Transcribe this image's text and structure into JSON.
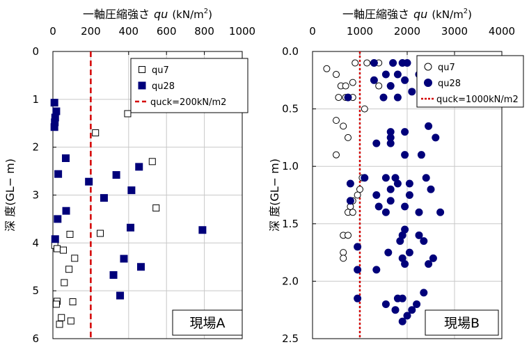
{
  "chart_data": [
    {
      "type": "scatter",
      "site": "現場A",
      "x_title": "一軸圧縮強さ",
      "x_symbol": "qu",
      "x_unit": "(kN/m",
      "x_unit_sup": "2",
      "x_unit_close": ")",
      "y_title": "深 度(GL− m)",
      "xlim": [
        0,
        1000
      ],
      "ylim": [
        0,
        6
      ],
      "x_ticks": [
        "0",
        "200",
        "400",
        "600",
        "800",
        "1000"
      ],
      "y_ticks": [
        "0",
        "1",
        "2",
        "3",
        "4",
        "5",
        "6"
      ],
      "reference_line": {
        "x": 200,
        "label": "quck=200kN/m2",
        "color": "#d40000"
      },
      "legend_position": "top-right",
      "series": [
        {
          "name": "qu7",
          "marker": "open-square",
          "points": [
            {
              "x": 395,
              "y": 1.3
            },
            {
              "x": 225,
              "y": 1.7
            },
            {
              "x": 525,
              "y": 2.3
            },
            {
              "x": 545,
              "y": 3.27
            },
            {
              "x": 90,
              "y": 3.82
            },
            {
              "x": 250,
              "y": 3.8
            },
            {
              "x": 10,
              "y": 4.05
            },
            {
              "x": 22,
              "y": 4.12
            },
            {
              "x": 55,
              "y": 4.15
            },
            {
              "x": 115,
              "y": 4.32
            },
            {
              "x": 85,
              "y": 4.55
            },
            {
              "x": 60,
              "y": 4.83
            },
            {
              "x": 22,
              "y": 5.22
            },
            {
              "x": 105,
              "y": 5.23
            },
            {
              "x": 18,
              "y": 5.28
            },
            {
              "x": 45,
              "y": 5.56
            },
            {
              "x": 95,
              "y": 5.63
            },
            {
              "x": 35,
              "y": 5.7
            }
          ]
        },
        {
          "name": "qu28",
          "marker": "filled-square",
          "points": [
            {
              "x": 8,
              "y": 1.07
            },
            {
              "x": 18,
              "y": 1.25
            },
            {
              "x": 12,
              "y": 1.38
            },
            {
              "x": 10,
              "y": 1.48
            },
            {
              "x": 8,
              "y": 1.58
            },
            {
              "x": 68,
              "y": 2.23
            },
            {
              "x": 28,
              "y": 2.56
            },
            {
              "x": 455,
              "y": 2.41
            },
            {
              "x": 335,
              "y": 2.58
            },
            {
              "x": 190,
              "y": 2.72
            },
            {
              "x": 415,
              "y": 2.9
            },
            {
              "x": 270,
              "y": 3.06
            },
            {
              "x": 70,
              "y": 3.33
            },
            {
              "x": 25,
              "y": 3.5
            },
            {
              "x": 410,
              "y": 3.68
            },
            {
              "x": 790,
              "y": 3.73
            },
            {
              "x": 12,
              "y": 3.92
            },
            {
              "x": 375,
              "y": 4.33
            },
            {
              "x": 465,
              "y": 4.5
            },
            {
              "x": 320,
              "y": 4.67
            },
            {
              "x": 355,
              "y": 5.1
            }
          ]
        }
      ]
    },
    {
      "type": "scatter",
      "site": "現場B",
      "x_title": "一軸圧縮強さ",
      "x_symbol": "qu",
      "x_unit": "(kN/m",
      "x_unit_sup": "2",
      "x_unit_close": ")",
      "y_title": "深 度(GL− m)",
      "xlim": [
        0,
        4000
      ],
      "ylim": [
        0,
        2.5
      ],
      "x_ticks": [
        "0",
        "1000",
        "2000",
        "3000",
        "4000"
      ],
      "y_ticks": [
        "0.0",
        "0.5",
        "1.0",
        "1.5",
        "2.0",
        "2.5"
      ],
      "reference_line": {
        "x": 1000,
        "label": "quck=1000kN/m2",
        "color": "#d40000"
      },
      "legend_position": "top-right",
      "series": [
        {
          "name": "qu7",
          "marker": "open-circle",
          "points": [
            {
              "x": 300,
              "y": 0.15
            },
            {
              "x": 900,
              "y": 0.1
            },
            {
              "x": 1150,
              "y": 0.1
            },
            {
              "x": 1400,
              "y": 0.1
            },
            {
              "x": 500,
              "y": 0.2
            },
            {
              "x": 850,
              "y": 0.27
            },
            {
              "x": 600,
              "y": 0.3
            },
            {
              "x": 700,
              "y": 0.3
            },
            {
              "x": 1400,
              "y": 0.3
            },
            {
              "x": 550,
              "y": 0.4
            },
            {
              "x": 700,
              "y": 0.4
            },
            {
              "x": 850,
              "y": 0.4
            },
            {
              "x": 1100,
              "y": 0.5
            },
            {
              "x": 500,
              "y": 0.6
            },
            {
              "x": 650,
              "y": 0.65
            },
            {
              "x": 750,
              "y": 0.75
            },
            {
              "x": 500,
              "y": 0.9
            },
            {
              "x": 1050,
              "y": 1.1
            },
            {
              "x": 1000,
              "y": 1.2
            },
            {
              "x": 950,
              "y": 1.25
            },
            {
              "x": 850,
              "y": 1.3
            },
            {
              "x": 800,
              "y": 1.35
            },
            {
              "x": 750,
              "y": 1.4
            },
            {
              "x": 850,
              "y": 1.4
            },
            {
              "x": 650,
              "y": 1.6
            },
            {
              "x": 750,
              "y": 1.6
            },
            {
              "x": 650,
              "y": 1.75
            },
            {
              "x": 650,
              "y": 1.8
            }
          ]
        },
        {
          "name": "qu28",
          "marker": "filled-circle",
          "points": [
            {
              "x": 1300,
              "y": 0.1
            },
            {
              "x": 1700,
              "y": 0.1
            },
            {
              "x": 1900,
              "y": 0.1
            },
            {
              "x": 2000,
              "y": 0.1
            },
            {
              "x": 1550,
              "y": 0.2
            },
            {
              "x": 1800,
              "y": 0.2
            },
            {
              "x": 2250,
              "y": 0.2
            },
            {
              "x": 1300,
              "y": 0.25
            },
            {
              "x": 1950,
              "y": 0.25
            },
            {
              "x": 1650,
              "y": 0.3
            },
            {
              "x": 2100,
              "y": 0.35
            },
            {
              "x": 750,
              "y": 0.4
            },
            {
              "x": 1500,
              "y": 0.4
            },
            {
              "x": 1800,
              "y": 0.4
            },
            {
              "x": 2450,
              "y": 0.65
            },
            {
              "x": 1650,
              "y": 0.7
            },
            {
              "x": 1950,
              "y": 0.7
            },
            {
              "x": 1650,
              "y": 0.75
            },
            {
              "x": 2600,
              "y": 0.75
            },
            {
              "x": 1350,
              "y": 0.8
            },
            {
              "x": 1650,
              "y": 0.8
            },
            {
              "x": 1950,
              "y": 0.9
            },
            {
              "x": 2300,
              "y": 0.9
            },
            {
              "x": 1100,
              "y": 1.1
            },
            {
              "x": 1550,
              "y": 1.1
            },
            {
              "x": 1750,
              "y": 1.1
            },
            {
              "x": 2400,
              "y": 1.1
            },
            {
              "x": 800,
              "y": 1.15
            },
            {
              "x": 1800,
              "y": 1.15
            },
            {
              "x": 2050,
              "y": 1.15
            },
            {
              "x": 1650,
              "y": 1.2
            },
            {
              "x": 2500,
              "y": 1.2
            },
            {
              "x": 1350,
              "y": 1.25
            },
            {
              "x": 2050,
              "y": 1.25
            },
            {
              "x": 800,
              "y": 1.3
            },
            {
              "x": 1650,
              "y": 1.3
            },
            {
              "x": 1400,
              "y": 1.35
            },
            {
              "x": 1950,
              "y": 1.35
            },
            {
              "x": 1550,
              "y": 1.4
            },
            {
              "x": 2250,
              "y": 1.4
            },
            {
              "x": 2700,
              "y": 1.4
            },
            {
              "x": 1950,
              "y": 1.55
            },
            {
              "x": 1900,
              "y": 1.6
            },
            {
              "x": 2250,
              "y": 1.6
            },
            {
              "x": 1850,
              "y": 1.65
            },
            {
              "x": 2350,
              "y": 1.65
            },
            {
              "x": 950,
              "y": 1.7
            },
            {
              "x": 1600,
              "y": 1.75
            },
            {
              "x": 2050,
              "y": 1.75
            },
            {
              "x": 1900,
              "y": 1.8
            },
            {
              "x": 2550,
              "y": 1.8
            },
            {
              "x": 1950,
              "y": 1.85
            },
            {
              "x": 2450,
              "y": 1.85
            },
            {
              "x": 950,
              "y": 1.9
            },
            {
              "x": 1350,
              "y": 1.9
            },
            {
              "x": 2350,
              "y": 2.1
            },
            {
              "x": 950,
              "y": 2.15
            },
            {
              "x": 1800,
              "y": 2.15
            },
            {
              "x": 1900,
              "y": 2.15
            },
            {
              "x": 1550,
              "y": 2.2
            },
            {
              "x": 2200,
              "y": 2.2
            },
            {
              "x": 1750,
              "y": 2.25
            },
            {
              "x": 2100,
              "y": 2.25
            },
            {
              "x": 2000,
              "y": 2.3
            },
            {
              "x": 1900,
              "y": 2.35
            }
          ]
        }
      ]
    }
  ]
}
